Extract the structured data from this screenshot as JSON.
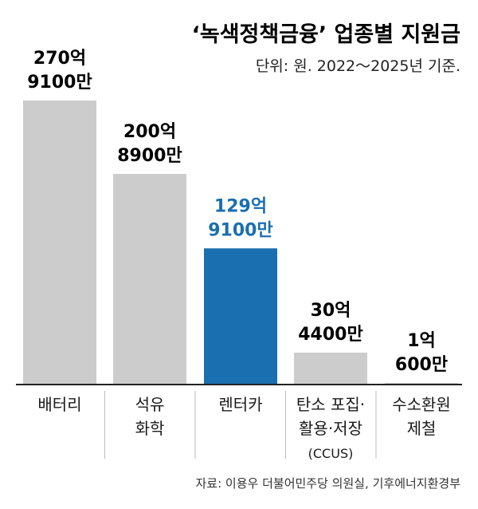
{
  "chart_data": {
    "type": "bar",
    "title": "‘녹색정책금융’ 업종별 지원금",
    "subtitle": "단위: 원. 2022～2025년 기준.",
    "categories": [
      [
        "배터리"
      ],
      [
        "석유",
        "화학"
      ],
      [
        "렌터카"
      ],
      [
        "탄소 포집·",
        "활용·저장",
        "(CCUS)"
      ],
      [
        "수소환원",
        "제철"
      ]
    ],
    "values": [
      27091000000,
      20089000000,
      12991000000,
      3044000000,
      106000000
    ],
    "value_labels": [
      [
        "270억",
        "9100만"
      ],
      [
        "200억",
        "8900만"
      ],
      [
        "129억",
        "9100만"
      ],
      [
        "30억",
        "4400만"
      ],
      [
        "1억",
        "600만"
      ]
    ],
    "highlight_index": 2,
    "ylim": [
      0,
      27091000000
    ],
    "grid": false,
    "legend": "none",
    "source": "자료: 이용우 더불어민주당 의원실, 기후에너지환경부"
  },
  "colors": {
    "bar": "#cccccc",
    "highlight": "#1a6fb0",
    "text": "#1a1a1a",
    "axis": "#222222",
    "divider": "#bbbbbb"
  }
}
